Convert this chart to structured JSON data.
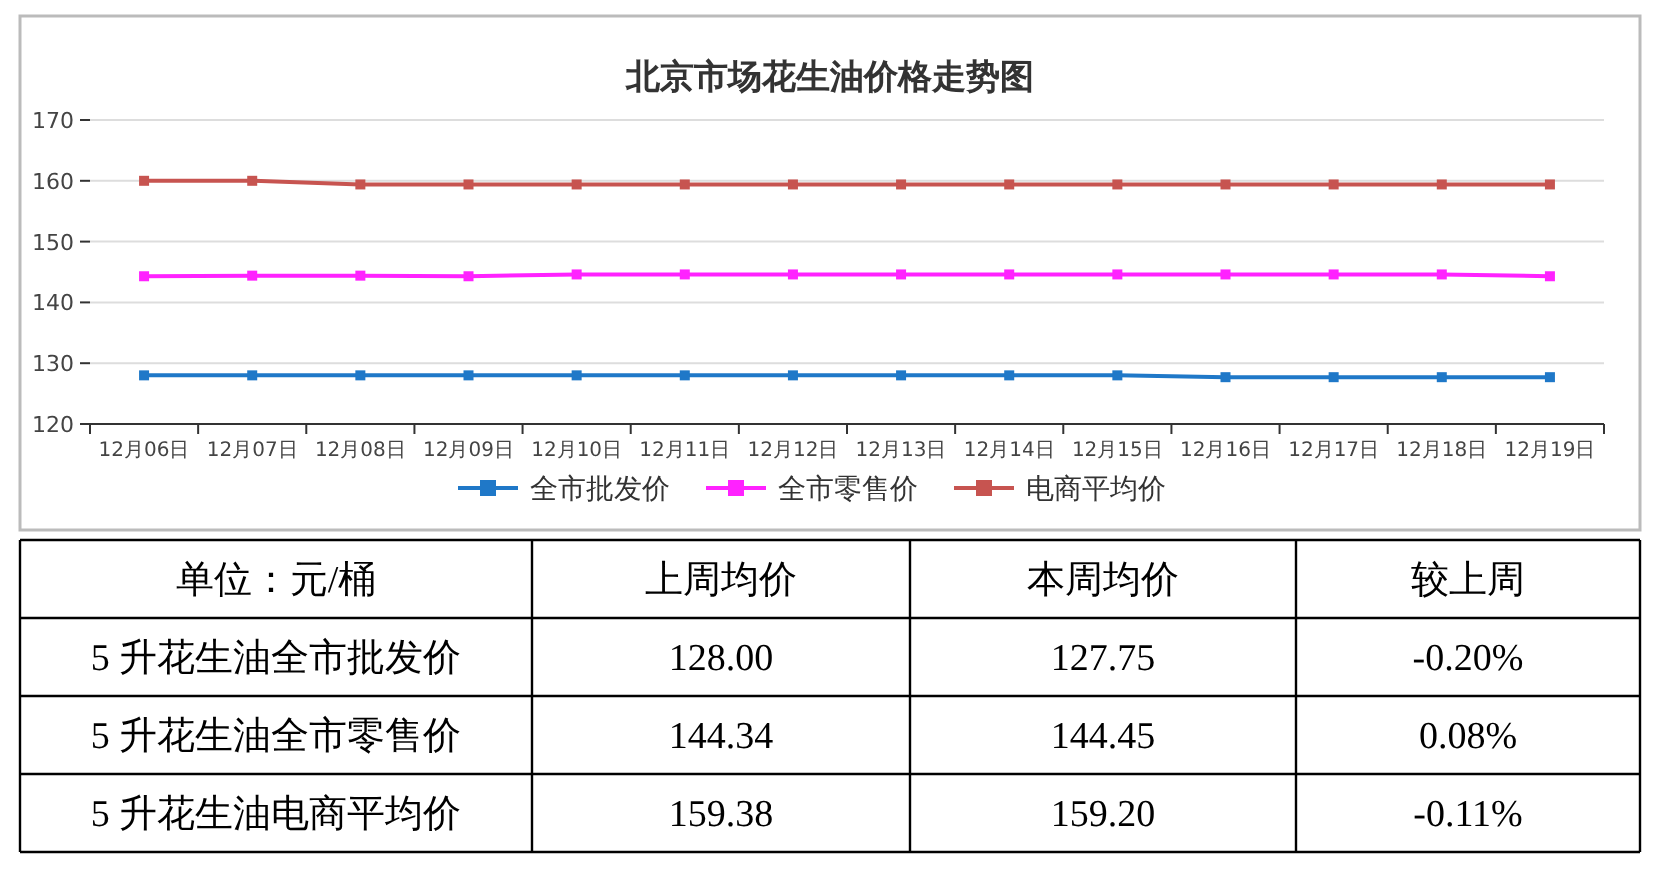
{
  "chart_data": [
    {
      "type": "line",
      "title": "北京市场花生油价格走势图",
      "categories": [
        "12月06日",
        "12月07日",
        "12月08日",
        "12月09日",
        "12月10日",
        "12月11日",
        "12月12日",
        "12月13日",
        "12月14日",
        "12月15日",
        "12月16日",
        "12月17日",
        "12月18日",
        "12月19日"
      ],
      "series": [
        {
          "name": "全市批发价",
          "color": "#1f78c8",
          "values": [
            128,
            128,
            128,
            128,
            128,
            128,
            128,
            128,
            128,
            128,
            127.7,
            127.7,
            127.7,
            127.7
          ]
        },
        {
          "name": "全市零售价",
          "color": "#ff22ff",
          "values": [
            144.3,
            144.4,
            144.4,
            144.3,
            144.6,
            144.6,
            144.6,
            144.6,
            144.6,
            144.6,
            144.6,
            144.6,
            144.6,
            144.3
          ]
        },
        {
          "name": "电商平均价",
          "color": "#c75450",
          "values": [
            160,
            160,
            159.4,
            159.4,
            159.4,
            159.4,
            159.4,
            159.4,
            159.4,
            159.4,
            159.4,
            159.4,
            159.4,
            159.4
          ]
        }
      ],
      "ylim": [
        120,
        170
      ],
      "yticks": [
        120,
        130,
        140,
        150,
        160,
        170
      ],
      "grid": "y",
      "legend": "bottom",
      "marker": "square",
      "line_style": "solid"
    },
    {
      "type": "other",
      "annotations": [
        "单位：元/桶",
        "上周均价",
        "本周均价",
        "较上周",
        "5 升花生油全市批发价",
        "128.00",
        "127.75",
        "-0.20%",
        "5 升花生油全市零售价",
        "144.34",
        "144.45",
        "0.08%",
        "5 升花生油电商平均价",
        "159.38",
        "159.20",
        "-0.11%"
      ]
    }
  ]
}
